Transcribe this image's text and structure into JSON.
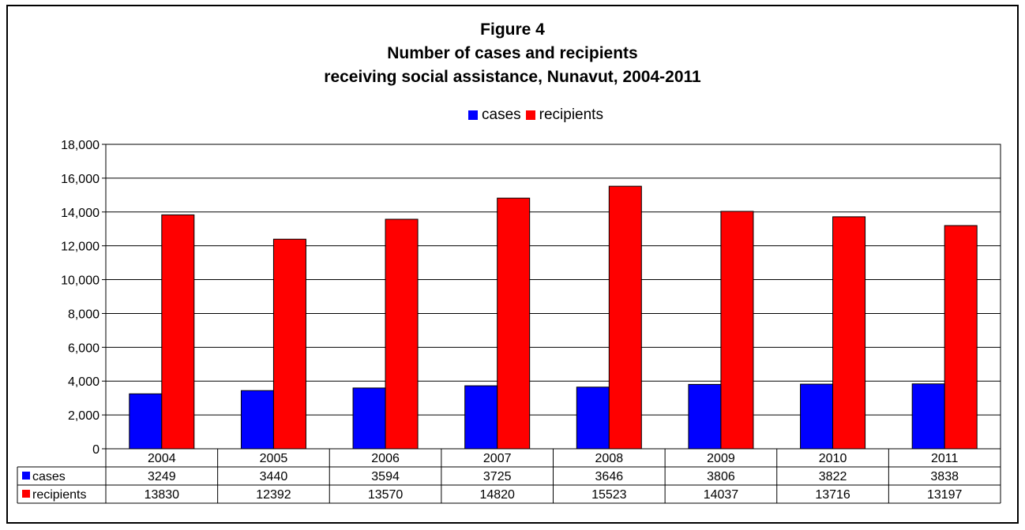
{
  "chart_data": {
    "type": "bar",
    "title": [
      "Figure 4",
      "Number of cases and recipients",
      "receiving social assistance, Nunavut, 2004-2011"
    ],
    "categories": [
      "2004",
      "2005",
      "2006",
      "2007",
      "2008",
      "2009",
      "2010",
      "2011"
    ],
    "series": [
      {
        "name": "cases",
        "color": "#0000ff",
        "values": [
          3249,
          3440,
          3594,
          3725,
          3646,
          3806,
          3822,
          3838
        ]
      },
      {
        "name": "recipients",
        "color": "#ff0000",
        "values": [
          13830,
          12392,
          13570,
          14820,
          15523,
          14037,
          13716,
          13197
        ]
      }
    ],
    "ylim": [
      0,
      18000
    ],
    "yticks": [
      0,
      2000,
      4000,
      6000,
      8000,
      10000,
      12000,
      14000,
      16000,
      18000
    ],
    "ytick_labels": [
      "0",
      "2,000",
      "4,000",
      "6,000",
      "8,000",
      "10,000",
      "12,000",
      "14,000",
      "16,000",
      "18,000"
    ],
    "grid": true,
    "legend_position": "top-center",
    "data_table": true
  }
}
